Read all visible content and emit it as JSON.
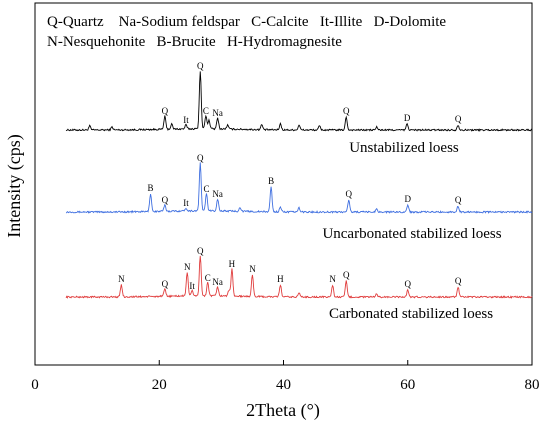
{
  "chart_data": {
    "type": "line",
    "xlabel": "2Theta (°)",
    "ylabel": "Intensity (cps)",
    "xlim": [
      0,
      80
    ],
    "xticks": [
      0,
      20,
      40,
      60,
      80
    ],
    "grid": false,
    "legend_lines": [
      "Q-Quartz    Na-Sodium feldspar   C-Calcite   It-Illite   D-Dolomite",
      "N-Nesquehonite   B-Brucite   H-Hydromagnesite"
    ],
    "series": [
      {
        "name": "Unstabilized loess",
        "color": "#000000",
        "peaks": [
          {
            "x": 8.8,
            "h": 4
          },
          {
            "x": 12.4,
            "h": 3
          },
          {
            "x": 20.9,
            "h": 13,
            "label": "Q"
          },
          {
            "x": 22.0,
            "h": 5
          },
          {
            "x": 24.3,
            "h": 4,
            "label": "It"
          },
          {
            "x": 26.6,
            "h": 58,
            "label": "Q"
          },
          {
            "x": 27.5,
            "h": 13,
            "label": "C"
          },
          {
            "x": 28.0,
            "h": 9
          },
          {
            "x": 29.4,
            "h": 11,
            "label": "Na"
          },
          {
            "x": 31.0,
            "h": 4
          },
          {
            "x": 36.5,
            "h": 5
          },
          {
            "x": 39.5,
            "h": 6
          },
          {
            "x": 42.5,
            "h": 5
          },
          {
            "x": 45.8,
            "h": 4
          },
          {
            "x": 50.1,
            "h": 13,
            "label": "Q"
          },
          {
            "x": 55.0,
            "h": 3
          },
          {
            "x": 59.9,
            "h": 6,
            "label": "D"
          },
          {
            "x": 68.1,
            "h": 5,
            "label": "Q"
          }
        ]
      },
      {
        "name": "Uncarbonated stabilized loess",
        "color": "#3f6fe0",
        "peaks": [
          {
            "x": 18.6,
            "h": 18,
            "label": "B"
          },
          {
            "x": 20.9,
            "h": 6,
            "label": "Q"
          },
          {
            "x": 24.3,
            "h": 3,
            "label": "It"
          },
          {
            "x": 26.6,
            "h": 48,
            "label": "Q"
          },
          {
            "x": 27.6,
            "h": 17,
            "label": "C"
          },
          {
            "x": 29.4,
            "h": 12,
            "label": "Na"
          },
          {
            "x": 33.0,
            "h": 4
          },
          {
            "x": 38.0,
            "h": 25,
            "label": "B"
          },
          {
            "x": 39.5,
            "h": 5
          },
          {
            "x": 42.5,
            "h": 4
          },
          {
            "x": 50.5,
            "h": 12,
            "label": "Q"
          },
          {
            "x": 55.0,
            "h": 3
          },
          {
            "x": 60.0,
            "h": 7,
            "label": "D"
          },
          {
            "x": 68.1,
            "h": 6,
            "label": "Q"
          }
        ]
      },
      {
        "name": "Carbonated stabilized loess",
        "color": "#e03c3c",
        "peaks": [
          {
            "x": 13.9,
            "h": 12,
            "label": "N"
          },
          {
            "x": 20.9,
            "h": 7,
            "label": "Q"
          },
          {
            "x": 24.5,
            "h": 24,
            "label": "N"
          },
          {
            "x": 25.3,
            "h": 5,
            "label": "It"
          },
          {
            "x": 26.6,
            "h": 40,
            "label": "Q"
          },
          {
            "x": 27.8,
            "h": 13,
            "label": "C"
          },
          {
            "x": 29.4,
            "h": 9,
            "label": "Na"
          },
          {
            "x": 31.2,
            "h": 6
          },
          {
            "x": 31.7,
            "h": 27,
            "label": "H"
          },
          {
            "x": 35.0,
            "h": 22,
            "label": "N"
          },
          {
            "x": 39.5,
            "h": 12,
            "label": "H"
          },
          {
            "x": 42.5,
            "h": 4
          },
          {
            "x": 47.9,
            "h": 12,
            "label": "N"
          },
          {
            "x": 50.1,
            "h": 16,
            "label": "Q"
          },
          {
            "x": 55.0,
            "h": 3
          },
          {
            "x": 60.0,
            "h": 7,
            "label": "Q"
          },
          {
            "x": 68.1,
            "h": 10,
            "label": "Q"
          }
        ]
      }
    ]
  }
}
